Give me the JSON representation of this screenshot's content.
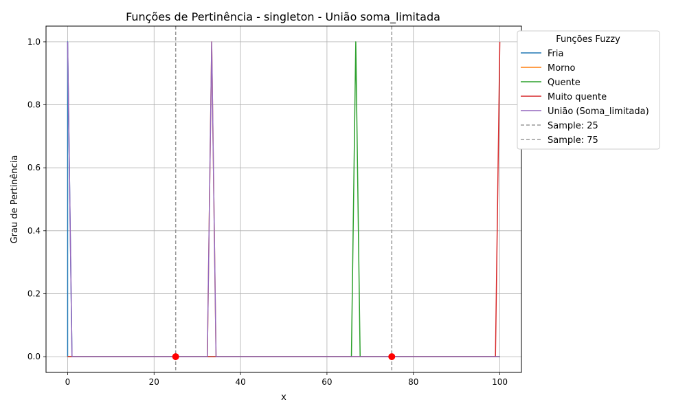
{
  "chart_data": {
    "type": "line",
    "title": "Funções de Pertinência - singleton - União soma_limitada",
    "xlabel": "x",
    "ylabel": "Grau de Pertinência",
    "xlim": [
      -5,
      105
    ],
    "ylim": [
      -0.05,
      1.05
    ],
    "xticks": [
      0,
      20,
      40,
      60,
      80,
      100
    ],
    "yticks": [
      0.0,
      0.2,
      0.4,
      0.6,
      0.8,
      1.0
    ],
    "xtick_labels": [
      "0",
      "20",
      "40",
      "60",
      "80",
      "100"
    ],
    "ytick_labels": [
      "0.0",
      "0.2",
      "0.4",
      "0.6",
      "0.8",
      "1.0"
    ],
    "grid": true,
    "legend": {
      "title": "Funções Fuzzy",
      "placement": "outside-top-right"
    },
    "series": [
      {
        "name": "Fria",
        "color": "#1f77b4",
        "style": "solid",
        "x": [
          0,
          0,
          1.01,
          100
        ],
        "y": [
          0,
          1,
          0,
          0
        ]
      },
      {
        "name": "Morno",
        "color": "#ff7f0e",
        "style": "solid",
        "x": [
          0,
          32.32,
          33.33,
          34.34,
          100
        ],
        "y": [
          0,
          0,
          1,
          0,
          0
        ]
      },
      {
        "name": "Quente",
        "color": "#2ca02c",
        "style": "solid",
        "x": [
          0,
          65.66,
          66.67,
          67.68,
          100
        ],
        "y": [
          0,
          0,
          1,
          0,
          0
        ]
      },
      {
        "name": "Muito quente",
        "color": "#d62728",
        "style": "solid",
        "x": [
          0,
          98.99,
          100
        ],
        "y": [
          0,
          0,
          1
        ]
      },
      {
        "name": "União (Soma_limitada)",
        "color": "#9467bd",
        "style": "solid",
        "x": [
          0,
          1.01,
          32.32,
          33.33,
          34.34,
          100
        ],
        "y": [
          1,
          0,
          0,
          1,
          0,
          0
        ]
      },
      {
        "name": "Sample: 25",
        "color": "#999999",
        "style": "dashed",
        "vline": 25
      },
      {
        "name": "Sample: 75",
        "color": "#999999",
        "style": "dashed",
        "vline": 75
      }
    ],
    "markers": [
      {
        "x": 25,
        "y": 0,
        "color": "#ff0000"
      },
      {
        "x": 75,
        "y": 0,
        "color": "#ff0000"
      }
    ]
  }
}
